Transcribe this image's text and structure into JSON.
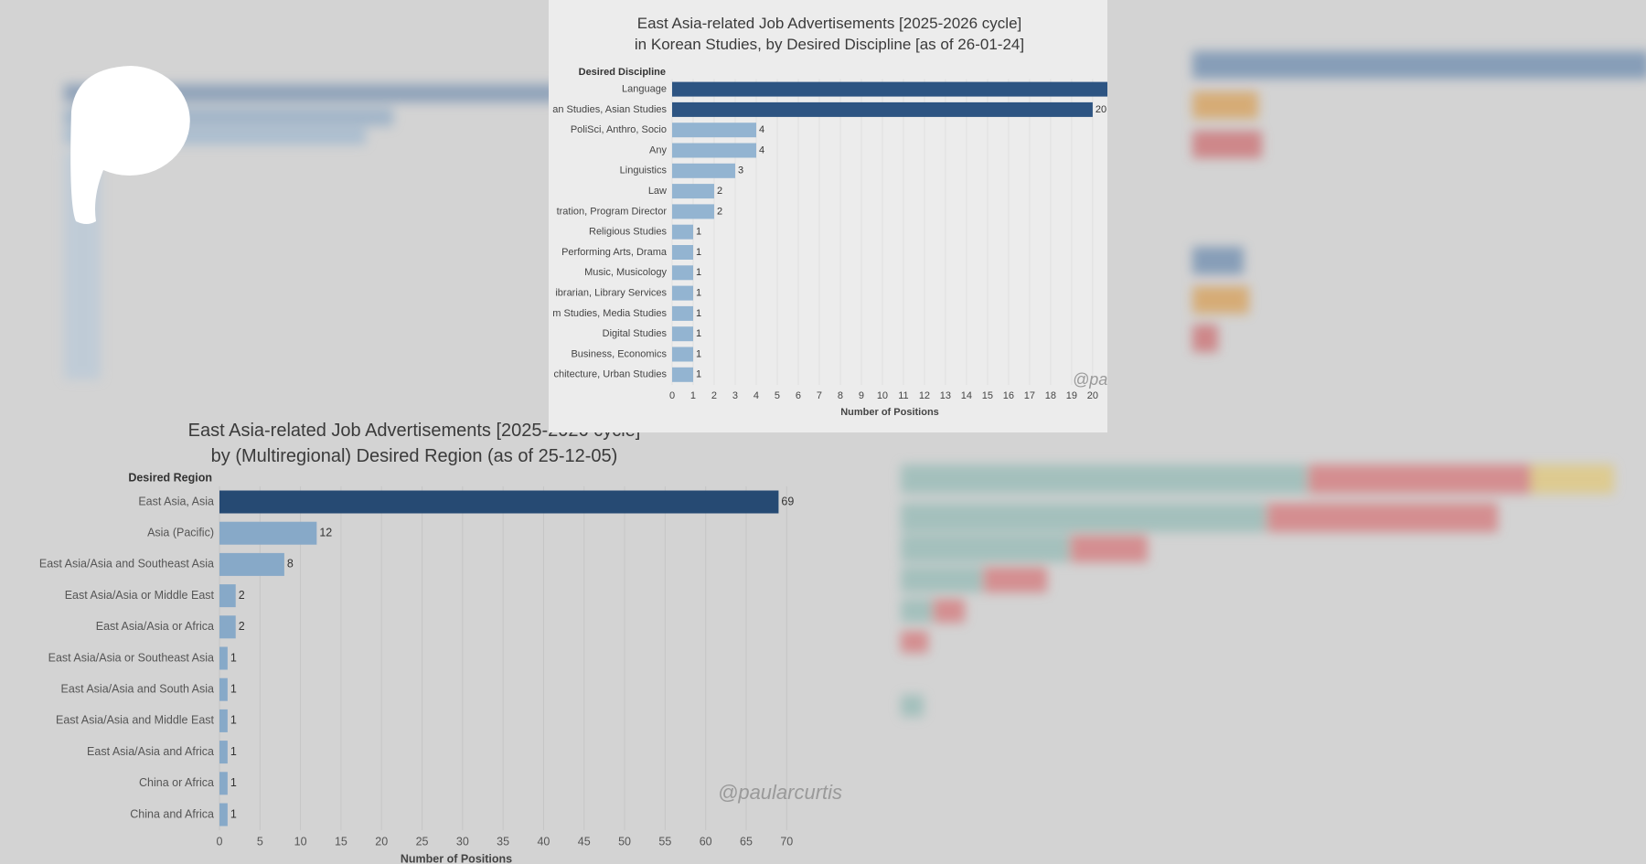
{
  "chart_data": [
    {
      "type": "bar",
      "horizontal": true,
      "title": "East Asia-related Job Advertisements [2025-2026 cycle]\nin Korean Studies, by Desired Discipline [as of 26-01-24]",
      "category_axis_label": "Desired Discipline",
      "x_label": "Number of Positions",
      "watermark": "@paular",
      "categories": [
        "Language",
        "an Studies, Asian Studies",
        "PoliSci, Anthro, Socio",
        "Any",
        "Linguistics",
        "Law",
        "tration, Program Director",
        "Religious Studies",
        "Performing Arts, Drama",
        "Music, Musicology",
        "ibrarian, Library Services",
        "m Studies, Media Studies",
        "Digital Studies",
        "Business, Economics",
        "chitecture, Urban Studies"
      ],
      "values": [
        21,
        20,
        4,
        4,
        3,
        2,
        2,
        1,
        1,
        1,
        1,
        1,
        1,
        1,
        1
      ],
      "colors": [
        "#2d5482",
        "#2d5482",
        "#93b4d1",
        "#93b4d1",
        "#93b4d1",
        "#93b4d1",
        "#93b4d1",
        "#93b4d1",
        "#93b4d1",
        "#93b4d1",
        "#93b4d1",
        "#93b4d1",
        "#93b4d1",
        "#93b4d1",
        "#93b4d1"
      ],
      "xlim": [
        0,
        20.7
      ],
      "xticks": [
        0,
        1,
        2,
        3,
        4,
        5,
        6,
        7,
        8,
        9,
        10,
        11,
        12,
        13,
        14,
        15,
        16,
        17,
        18,
        19,
        20
      ],
      "grid": true
    },
    {
      "type": "bar",
      "horizontal": true,
      "title": "East Asia-related Job Advertisements [2025-2026 cycle]\nby (Multiregional) Desired Region (as of 25-12-05)",
      "category_axis_label": "Desired Region",
      "x_label": "Number of Positions",
      "watermark": "@paularcurtis",
      "categories": [
        "East Asia, Asia",
        "Asia (Pacific)",
        "East Asia/Asia and Southeast Asia",
        "East Asia/Asia or Middle East",
        "East Asia/Asia or Africa",
        "East Asia/Asia or Southeast Asia",
        "East Asia/Asia and South Asia",
        "East Asia/Asia and Middle East",
        "East Asia/Asia and Africa",
        "China or Africa",
        "China and Africa"
      ],
      "values": [
        69,
        12,
        8,
        2,
        2,
        1,
        1,
        1,
        1,
        1,
        1
      ],
      "colors": [
        "#264a73",
        "#87a9c8",
        "#87a9c8",
        "#87a9c8",
        "#87a9c8",
        "#87a9c8",
        "#87a9c8",
        "#87a9c8",
        "#87a9c8",
        "#87a9c8",
        "#87a9c8"
      ],
      "xlim": [
        0,
        72
      ],
      "xticks": [
        0,
        5,
        10,
        15,
        20,
        25,
        30,
        35,
        40,
        45,
        50,
        55,
        60,
        65,
        70
      ],
      "grid": true
    }
  ]
}
